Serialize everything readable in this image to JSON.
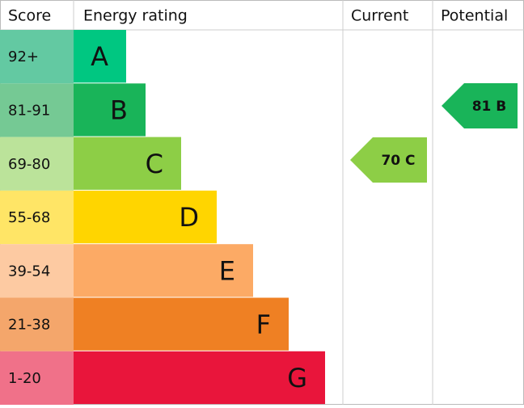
{
  "header": {
    "score": "Score",
    "rating": "Energy rating",
    "current": "Current",
    "potential": "Potential"
  },
  "bands": [
    {
      "score": "92+",
      "letter": "A",
      "color": "#00c781",
      "score_color": "#63c9a2"
    },
    {
      "score": "81-91",
      "letter": "B",
      "color": "#19b459",
      "score_color": "#75c994"
    },
    {
      "score": "69-80",
      "letter": "C",
      "color": "#8dce46",
      "score_color": "#bbe39a"
    },
    {
      "score": "55-68",
      "letter": "D",
      "color": "#ffd500",
      "score_color": "#ffe566"
    },
    {
      "score": "39-54",
      "letter": "E",
      "color": "#fcaa65",
      "score_color": "#fdcaa2"
    },
    {
      "score": "21-38",
      "letter": "F",
      "color": "#ef8023",
      "score_color": "#f4a66b"
    },
    {
      "score": "1-20",
      "letter": "G",
      "color": "#e9153b",
      "score_color": "#f07189"
    }
  ],
  "current": {
    "label": "70 C",
    "color": "#8dce46"
  },
  "potential": {
    "label": "81 B",
    "color": "#19b459"
  }
}
